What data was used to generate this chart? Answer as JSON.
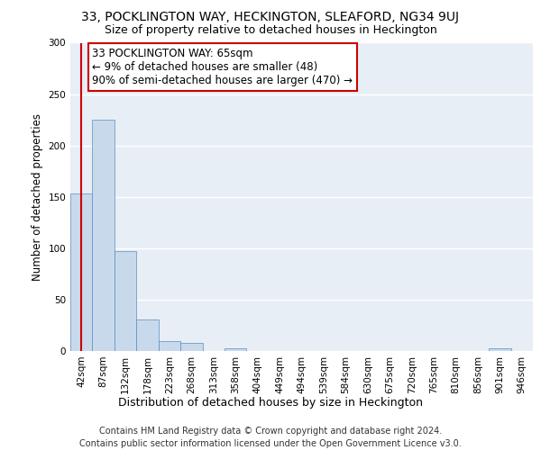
{
  "title": "33, POCKLINGTON WAY, HECKINGTON, SLEAFORD, NG34 9UJ",
  "subtitle": "Size of property relative to detached houses in Heckington",
  "xlabel": "Distribution of detached houses by size in Heckington",
  "ylabel": "Number of detached properties",
  "bar_color": "#c9d9ec",
  "bar_edge_color": "#5b8db8",
  "background_color": "#e8eef5",
  "categories": [
    "42sqm",
    "87sqm",
    "132sqm",
    "178sqm",
    "223sqm",
    "268sqm",
    "313sqm",
    "358sqm",
    "404sqm",
    "449sqm",
    "494sqm",
    "539sqm",
    "584sqm",
    "630sqm",
    "675sqm",
    "720sqm",
    "765sqm",
    "810sqm",
    "856sqm",
    "901sqm",
    "946sqm"
  ],
  "values": [
    153,
    225,
    97,
    31,
    10,
    8,
    0,
    3,
    0,
    0,
    0,
    0,
    0,
    0,
    0,
    0,
    0,
    0,
    0,
    3,
    0
  ],
  "ylim": [
    0,
    300
  ],
  "yticks": [
    0,
    50,
    100,
    150,
    200,
    250,
    300
  ],
  "annotation_box_text": "33 POCKLINGTON WAY: 65sqm\n← 9% of detached houses are smaller (48)\n90% of semi-detached houses are larger (470) →",
  "annotation_box_color": "#ffffff",
  "annotation_box_edge_color": "#cc0000",
  "vline_color": "#cc0000",
  "footer_text": "Contains HM Land Registry data © Crown copyright and database right 2024.\nContains public sector information licensed under the Open Government Licence v3.0.",
  "title_fontsize": 10,
  "subtitle_fontsize": 9,
  "ylabel_fontsize": 8.5,
  "xlabel_fontsize": 9,
  "tick_fontsize": 7.5,
  "annotation_fontsize": 8.5,
  "footer_fontsize": 7
}
